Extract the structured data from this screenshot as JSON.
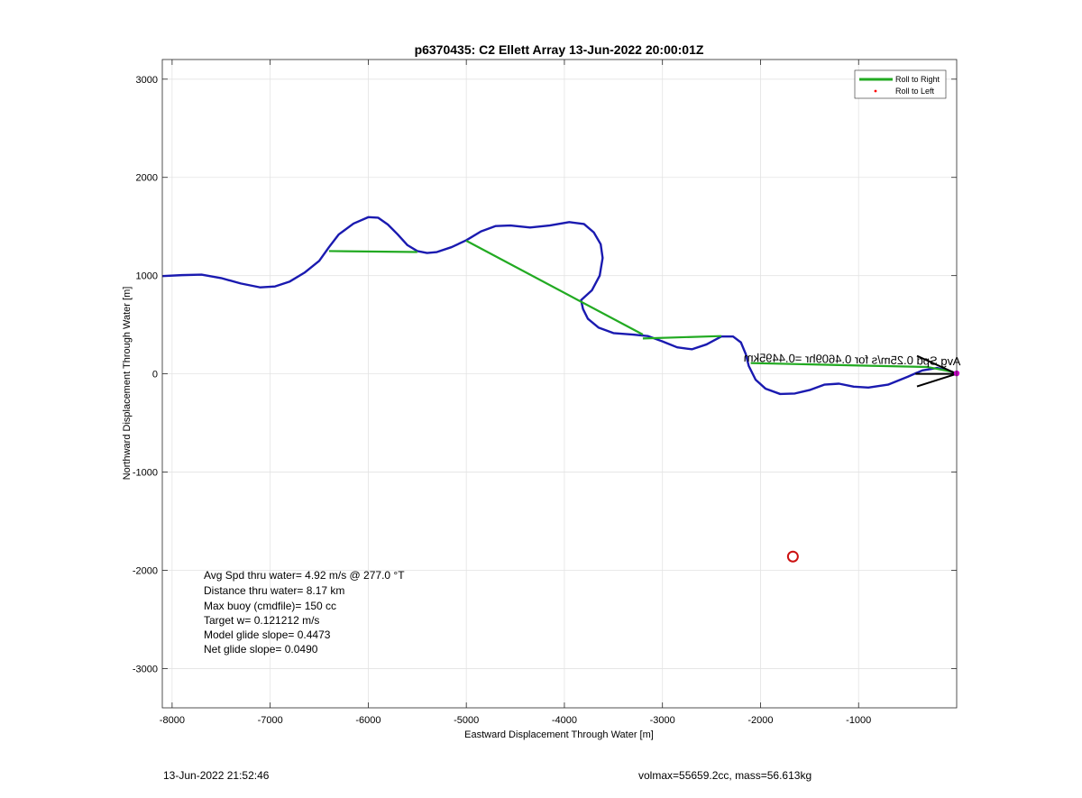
{
  "chart_data": {
    "type": "line",
    "title": "p6370435: C2 Ellett Array 13-Jun-2022 20:00:01Z",
    "xlabel": "Eastward Displacement Through Water [m]",
    "ylabel": "Northward Displacement Through Water [m]",
    "xlim": [
      -8100,
      0
    ],
    "ylim": [
      -3400,
      3200
    ],
    "xticks": [
      -8000,
      -7000,
      -6000,
      -5000,
      -4000,
      -3000,
      -2000,
      -1000
    ],
    "yticks": [
      3000,
      2000,
      1000,
      0,
      -1000,
      -2000,
      -3000
    ],
    "grid": true,
    "legend": {
      "placement": "top-right",
      "entries": [
        {
          "label": "Roll to Right",
          "color": "#22aa22",
          "marker": "line"
        },
        {
          "label": "Roll to Left",
          "color": "#ff0000",
          "marker": "dot"
        }
      ]
    },
    "series": [
      {
        "color": "#1a1ab0",
        "points": [
          [
            -8100,
            995
          ],
          [
            -7900,
            1005
          ],
          [
            -7700,
            1010
          ],
          [
            -7500,
            975
          ],
          [
            -7300,
            920
          ],
          [
            -7100,
            880
          ],
          [
            -6950,
            890
          ],
          [
            -6800,
            940
          ],
          [
            -6650,
            1030
          ],
          [
            -6500,
            1150
          ],
          [
            -6400,
            1290
          ],
          [
            -6300,
            1420
          ],
          [
            -6150,
            1530
          ],
          [
            -6000,
            1595
          ],
          [
            -5900,
            1590
          ],
          [
            -5800,
            1520
          ],
          [
            -5700,
            1420
          ],
          [
            -5600,
            1310
          ],
          [
            -5500,
            1250
          ],
          [
            -5400,
            1230
          ],
          [
            -5300,
            1240
          ],
          [
            -5150,
            1290
          ],
          [
            -5000,
            1360
          ],
          [
            -4850,
            1450
          ],
          [
            -4700,
            1505
          ],
          [
            -4550,
            1510
          ],
          [
            -4350,
            1490
          ],
          [
            -4150,
            1510
          ],
          [
            -3950,
            1545
          ],
          [
            -3800,
            1525
          ],
          [
            -3700,
            1440
          ],
          [
            -3630,
            1320
          ],
          [
            -3610,
            1180
          ],
          [
            -3640,
            1000
          ],
          [
            -3720,
            850
          ],
          [
            -3830,
            750
          ],
          [
            -3810,
            660
          ],
          [
            -3760,
            560
          ],
          [
            -3650,
            470
          ],
          [
            -3500,
            415
          ],
          [
            -3300,
            400
          ],
          [
            -3150,
            385
          ],
          [
            -3000,
            330
          ],
          [
            -2850,
            270
          ],
          [
            -2700,
            250
          ],
          [
            -2550,
            300
          ],
          [
            -2400,
            380
          ],
          [
            -2280,
            380
          ],
          [
            -2200,
            320
          ],
          [
            -2150,
            200
          ],
          [
            -2120,
            80
          ],
          [
            -2050,
            -60
          ],
          [
            -1950,
            -150
          ],
          [
            -1800,
            -205
          ],
          [
            -1650,
            -200
          ],
          [
            -1500,
            -165
          ],
          [
            -1350,
            -110
          ],
          [
            -1200,
            -100
          ],
          [
            -1050,
            -130
          ],
          [
            -900,
            -140
          ],
          [
            -700,
            -110
          ],
          [
            -500,
            -30
          ],
          [
            -350,
            35
          ],
          [
            -200,
            60
          ],
          [
            -60,
            25
          ],
          [
            0,
            0
          ]
        ]
      },
      {
        "name": "Roll to Right",
        "color": "#22aa22",
        "segments": [
          [
            [
              -6400,
              1250
            ],
            [
              -5500,
              1240
            ]
          ],
          [
            [
              -5000,
              1355
            ],
            [
              -3200,
              400
            ]
          ],
          [
            [
              -3200,
              360
            ],
            [
              -2400,
              385
            ]
          ],
          [
            [
              -2100,
              110
            ],
            [
              -1000,
              85
            ],
            [
              -300,
              70
            ],
            [
              -40,
              20
            ]
          ]
        ]
      }
    ],
    "markers": [
      {
        "type": "open-circle",
        "color": "#cc1111",
        "x": -1670,
        "y": -1860
      },
      {
        "type": "arrow",
        "color": "#000000",
        "from": [
          -420,
          0
        ],
        "to": [
          0,
          0
        ]
      },
      {
        "type": "dot",
        "color": "#cc00cc",
        "x": 0,
        "y": 5
      }
    ],
    "annotations": {
      "track_label": "Avg Spd 0.25m/s for 0.4609hr =0.4495km",
      "stats": [
        "Avg Spd thru water=  4.92 m/s @ 277.0 °T",
        "Distance thru water=  8.17 km",
        "Max buoy (cmdfile)= 150 cc",
        "Target w= 0.121212 m/s",
        "Model glide slope= 0.4473",
        "Net glide slope= 0.0490"
      ]
    }
  },
  "footer": {
    "timestamp": "13-Jun-2022 21:52:46",
    "vehicle": "volmax=55659.2cc, mass=56.613kg"
  }
}
